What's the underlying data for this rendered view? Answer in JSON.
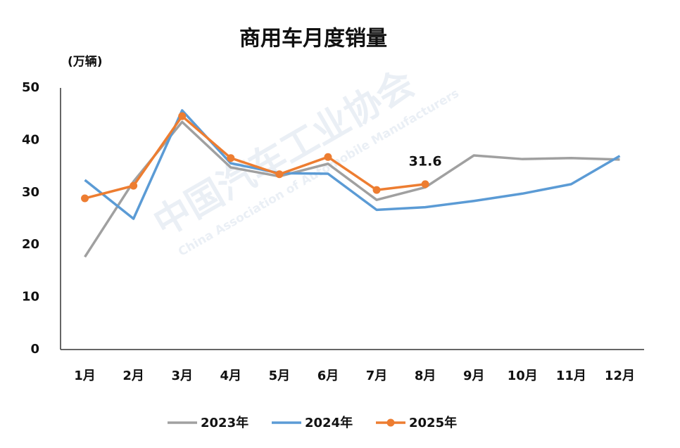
{
  "chart_data": {
    "type": "line",
    "title": "商用车月度销量",
    "y_label": "(万辆)",
    "watermark": [
      "中国汽车工业协会",
      "China Association of Automobile Manufacturers"
    ],
    "categories": [
      "1月",
      "2月",
      "3月",
      "4月",
      "5月",
      "6月",
      "7月",
      "8月",
      "9月",
      "10月",
      "11月",
      "12月"
    ],
    "series": [
      {
        "name": "2023年",
        "color": "#a0a0a0",
        "markers": false,
        "values": [
          17.7,
          32.1,
          43.5,
          34.8,
          33.1,
          35.5,
          28.6,
          31.0,
          37.1,
          36.4,
          36.6,
          36.3
        ]
      },
      {
        "name": "2024年",
        "color": "#5b9bd5",
        "markers": false,
        "values": [
          32.4,
          25.0,
          45.7,
          35.6,
          33.7,
          33.6,
          26.7,
          27.2,
          28.4,
          29.8,
          31.6,
          37.0
        ]
      },
      {
        "name": "2025年",
        "color": "#ed7d31",
        "markers": true,
        "values": [
          28.9,
          31.3,
          44.6,
          36.6,
          33.5,
          36.8,
          30.5,
          31.6,
          null,
          null,
          null,
          null
        ],
        "labeled_index": 7
      }
    ],
    "ylim": [
      0,
      50
    ],
    "yticks": [
      0,
      10,
      20,
      30,
      40,
      50
    ],
    "grid": false
  }
}
